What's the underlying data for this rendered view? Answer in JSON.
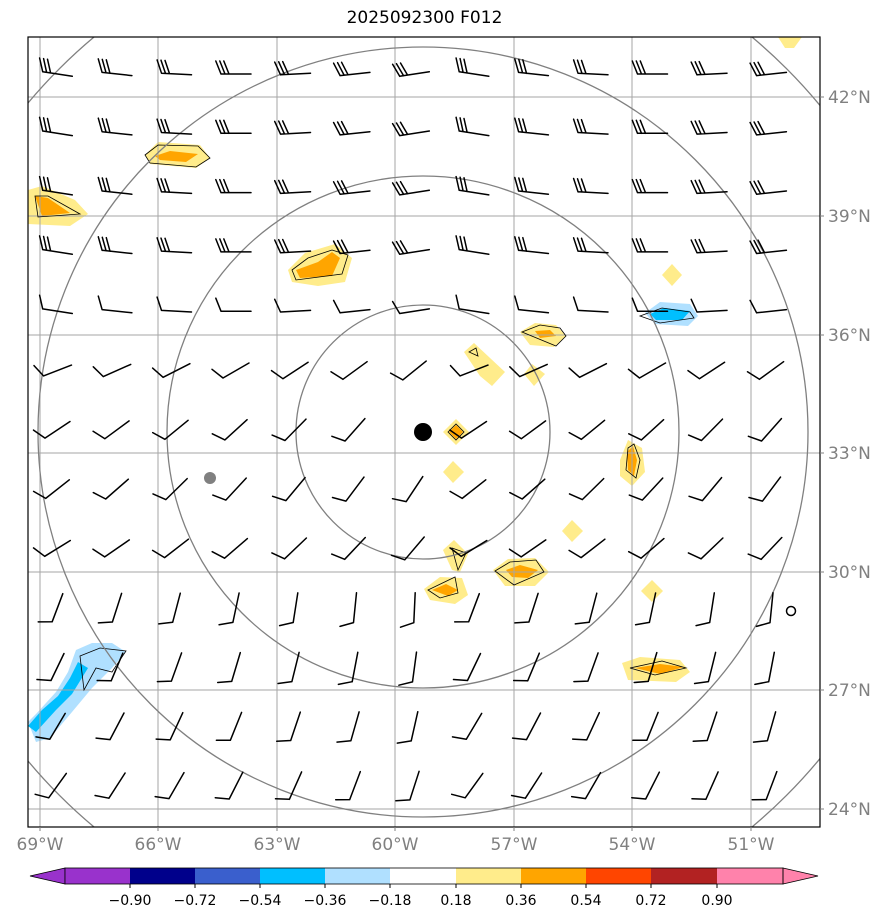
{
  "title": "2025092300 F012",
  "map": {
    "lat_labels": [
      "42°N",
      "39°N",
      "36°N",
      "33°N",
      "30°N",
      "27°N",
      "24°N"
    ],
    "lon_labels": [
      "69°W",
      "66°W",
      "63°W",
      "60°W",
      "57°W",
      "54°W",
      "51°W"
    ],
    "grid_color": "#999999",
    "range_ring_color": "#808080",
    "storm_center_marker": "black-dot",
    "track_point_marker": "gray-dot"
  },
  "colorbar": {
    "ticks": [
      "−0.90",
      "−0.72",
      "−0.54",
      "−0.36",
      "−0.18",
      "0.18",
      "0.36",
      "0.54",
      "0.72",
      "0.90"
    ],
    "colors": [
      "#9932cc",
      "#00008b",
      "#3a5fcd",
      "#00bfff",
      "#b0e0ff",
      "#ffffff",
      "#ffec8b",
      "#ffa500",
      "#ff4500",
      "#b22222",
      "#ff82ab"
    ]
  }
}
